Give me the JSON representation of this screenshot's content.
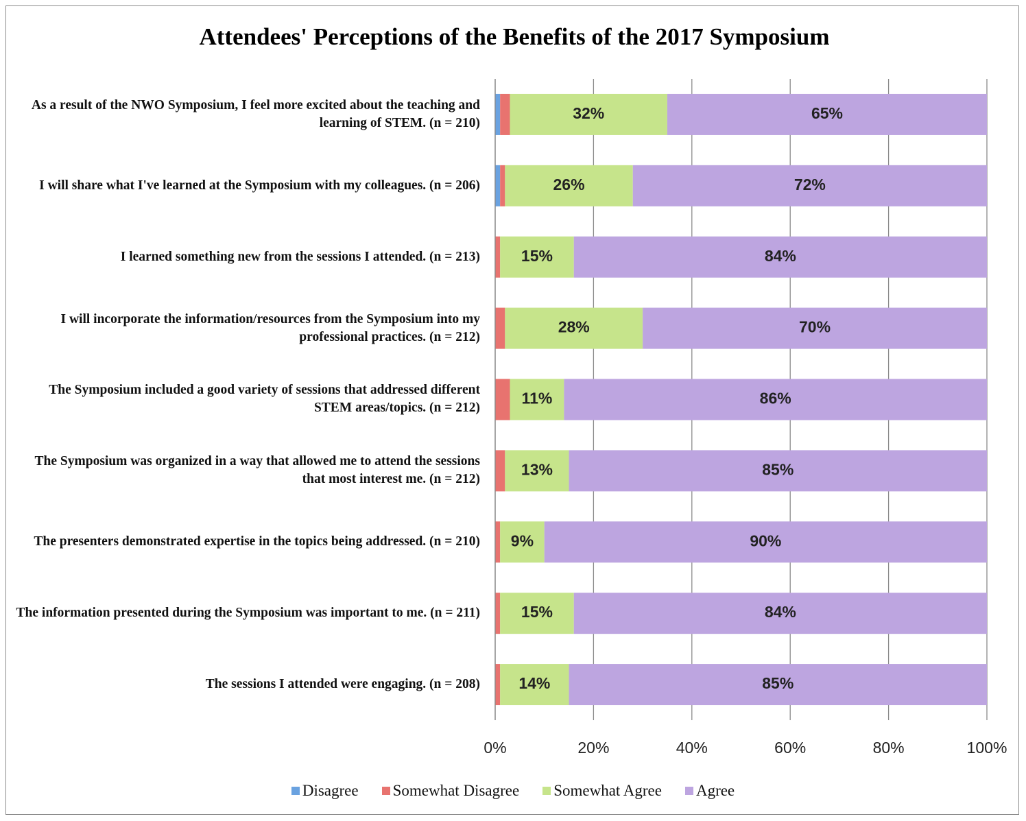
{
  "chart_data": {
    "type": "stacked_horizontal_bar",
    "title": "Attendees' Perceptions of the Benefits of the 2017 Symposium",
    "categories": [
      "As a result of the NWO Symposium, I feel more excited about the teaching and learning of STEM. (n = 210)",
      "I will share what I've learned at the Symposium with my colleagues. (n = 206)",
      "I learned something new from the sessions I attended. (n = 213)",
      "I will incorporate the information/resources from the Symposium into my professional practices. (n = 212)",
      "The Symposium included a good variety of sessions that addressed different STEM areas/topics. (n = 212)",
      "The Symposium was organized in a way that allowed me to attend the sessions that most interest me. (n = 212)",
      "The presenters demonstrated expertise in the topics being addressed. (n = 210)",
      "The information presented during the Symposium was important to me. (n = 211)",
      "The sessions I attended were engaging. (n = 208)"
    ],
    "series": [
      {
        "name": "Disagree",
        "color": "#6aa2e0",
        "values": [
          1,
          1,
          0,
          0,
          0,
          0,
          0,
          0,
          0
        ]
      },
      {
        "name": "Somewhat Disagree",
        "color": "#e8736f",
        "values": [
          2,
          1,
          1,
          2,
          3,
          2,
          1,
          1,
          1
        ]
      },
      {
        "name": "Somewhat Agree",
        "color": "#c6e48b",
        "values": [
          32,
          26,
          15,
          28,
          11,
          13,
          9,
          15,
          14
        ],
        "value_labels": [
          "32%",
          "26%",
          "15%",
          "28%",
          "11%",
          "13%",
          "9%",
          "15%",
          "14%"
        ]
      },
      {
        "name": "Agree",
        "color": "#bda5e0",
        "values": [
          65,
          72,
          84,
          70,
          86,
          85,
          90,
          84,
          85
        ],
        "value_labels": [
          "65%",
          "72%",
          "84%",
          "70%",
          "86%",
          "85%",
          "90%",
          "84%",
          "85%"
        ]
      }
    ],
    "xlim": [
      0,
      100
    ],
    "xticks": [
      {
        "value": 0,
        "label": "0%"
      },
      {
        "value": 20,
        "label": "20%"
      },
      {
        "value": 40,
        "label": "40%"
      },
      {
        "value": 60,
        "label": "60%"
      },
      {
        "value": 80,
        "label": "80%"
      },
      {
        "value": 100,
        "label": "100%"
      }
    ],
    "grid": true,
    "legend": "bottom"
  }
}
